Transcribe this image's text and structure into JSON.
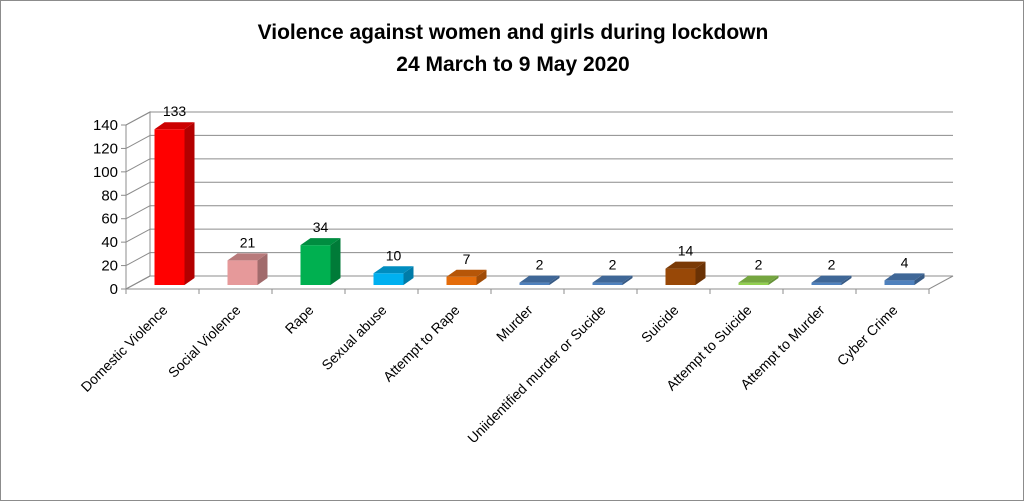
{
  "chart_data": {
    "type": "bar",
    "title": "Violence against women and girls during lockdown",
    "subtitle": "24 March to 9 May 2020",
    "categories": [
      "Domestic Violence",
      "Social Violence",
      "Rape",
      "Sexual abuse",
      "Attempt to Rape",
      "Murder",
      "Uniidentified murder or Sucide",
      "Suicide",
      "Attempt to Suicide",
      "Attempt to Murder",
      "Cyber Crime"
    ],
    "values": [
      133,
      21,
      34,
      10,
      7,
      2,
      2,
      14,
      2,
      2,
      4
    ],
    "data_labels": [
      "133",
      "21",
      "34",
      "10",
      "7",
      "2",
      "2",
      "14",
      "2",
      "2",
      "4"
    ],
    "colors": [
      "#ff0000",
      "#e6999a",
      "#00b050",
      "#00b0f0",
      "#e46c0a",
      "#4f81bd",
      "#4f81bd",
      "#984807",
      "#92d050",
      "#4f81bd",
      "#4f81bd"
    ],
    "yticks": [
      "0",
      "20",
      "40",
      "60",
      "80",
      "100",
      "120",
      "140"
    ],
    "ylim": [
      0,
      140
    ],
    "grid": true,
    "legend": "none",
    "xlabel": "",
    "ylabel": ""
  }
}
